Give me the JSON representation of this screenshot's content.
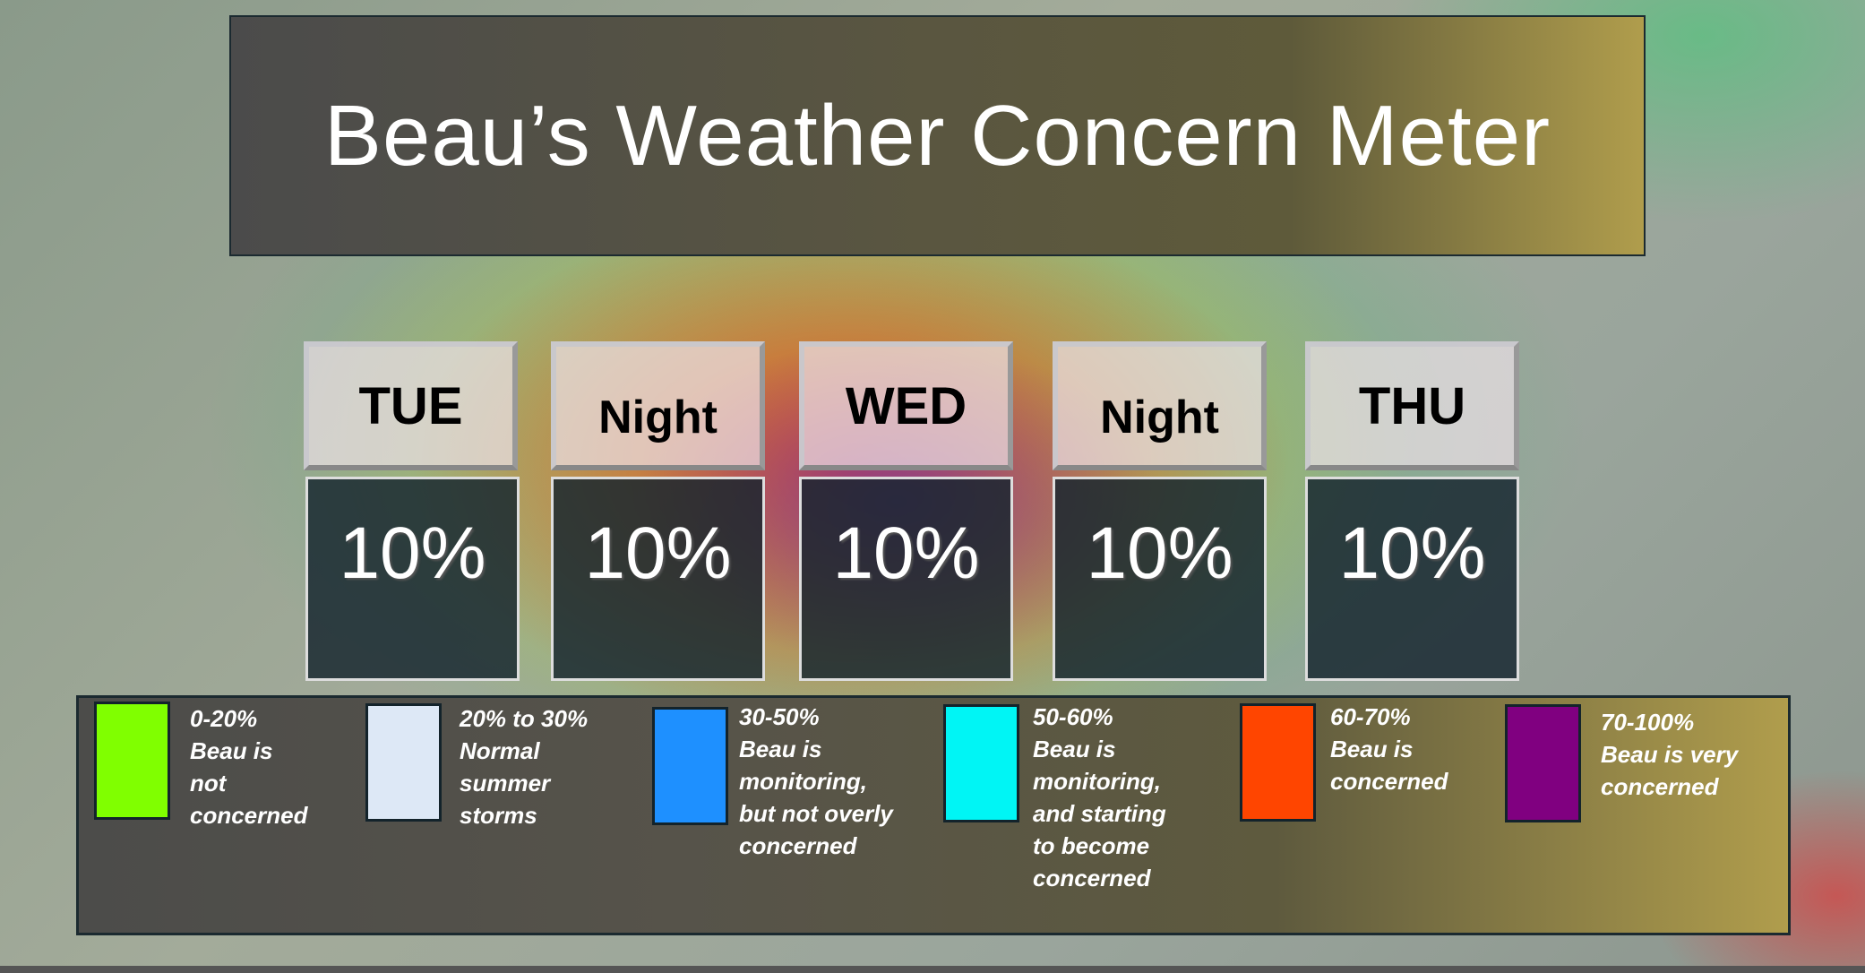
{
  "title": "Beau’s Weather Concern Meter",
  "forecast": [
    {
      "label": "TUE",
      "value": "10%"
    },
    {
      "label": "Night",
      "value": "10%"
    },
    {
      "label": "WED",
      "value": "10%"
    },
    {
      "label": "Night",
      "value": "10%"
    },
    {
      "label": "THU",
      "value": "10%"
    }
  ],
  "legend": [
    {
      "range": "0-20%",
      "lines": [
        "Beau is",
        "not",
        "concerned"
      ],
      "color": "#80ff00"
    },
    {
      "range": "20% to 30%",
      "lines": [
        "Normal",
        "summer",
        "storms"
      ],
      "color": "#dde8f6"
    },
    {
      "range": "30-50%",
      "lines": [
        "Beau is",
        "monitoring,",
        "but not overly",
        "concerned"
      ],
      "color": "#1e90ff"
    },
    {
      "range": "50-60%",
      "lines": [
        "Beau is",
        "monitoring,",
        "and starting",
        "to become",
        "concerned"
      ],
      "color": "#00f5f5"
    },
    {
      "range": "60-70%",
      "lines": [
        "Beau is",
        "concerned"
      ],
      "color": "#ff4500"
    },
    {
      "range": "70-100%",
      "lines": [
        "Beau is very",
        "concerned"
      ],
      "color": "#800080"
    }
  ]
}
